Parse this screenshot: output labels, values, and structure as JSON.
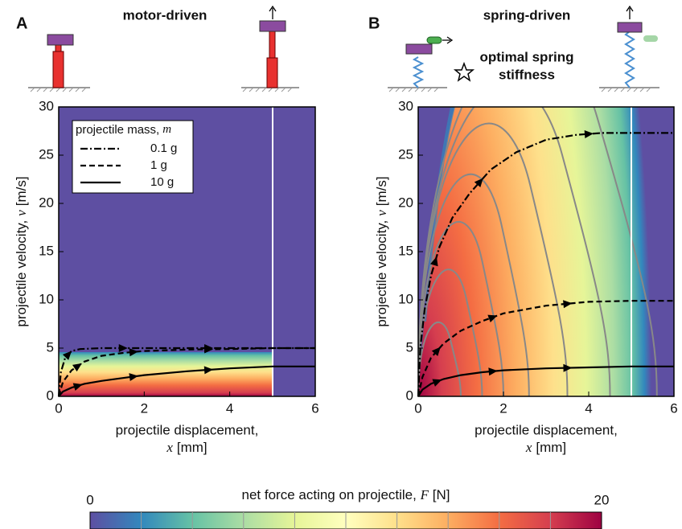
{
  "chart_data": [
    {
      "type": "line",
      "panel": "A",
      "title": "motor-driven",
      "x_label": {
        "text": "projectile displacement,",
        "symbol": "x",
        "unit": "[mm]"
      },
      "y_label": {
        "text": "projectile velocity,",
        "symbol": "v",
        "unit": "[m/s]"
      },
      "xlim": [
        0,
        6
      ],
      "xticks": [
        0,
        2,
        4,
        6
      ],
      "ylim": [
        0,
        30
      ],
      "yticks": [
        0,
        5,
        10,
        15,
        20,
        25,
        30
      ],
      "legend": "upper left",
      "legend_title": {
        "text": "projectile mass,",
        "symbol": "m"
      },
      "series": [
        {
          "name": "0.1 g",
          "color": "#000000",
          "dash": "dashdot",
          "x": [
            0,
            0.05,
            0.15,
            0.3,
            0.5,
            1,
            2,
            3,
            4,
            5,
            6
          ],
          "values": [
            0,
            2.5,
            4,
            4.7,
            4.9,
            5,
            5,
            5,
            5,
            5,
            5
          ]
        },
        {
          "name": "1 g",
          "color": "#000000",
          "dash": "dashed",
          "x": [
            0,
            0.1,
            0.3,
            0.6,
            1,
            1.5,
            2,
            3,
            4,
            5,
            6
          ],
          "values": [
            0,
            1.5,
            2.7,
            3.6,
            4.2,
            4.5,
            4.7,
            4.85,
            4.9,
            5,
            5
          ]
        },
        {
          "name": "10 g",
          "color": "#000000",
          "dash": "solid",
          "x": [
            0,
            0.1,
            0.3,
            0.6,
            1,
            1.5,
            2,
            3,
            4,
            5,
            6
          ],
          "values": [
            0,
            0.5,
            0.9,
            1.3,
            1.6,
            1.9,
            2.2,
            2.6,
            2.9,
            3.1,
            3.1
          ]
        }
      ]
    },
    {
      "type": "line",
      "panel": "B",
      "title": "spring-driven",
      "annotation": [
        "optimal spring",
        "stiffness"
      ],
      "x_label": {
        "text": "projectile displacement,",
        "symbol": "x",
        "unit": "[mm]"
      },
      "y_label": {
        "text": "projectile velocity,",
        "symbol": "v",
        "unit": "[m/s]"
      },
      "xlim": [
        0,
        6
      ],
      "xticks": [
        0,
        2,
        4,
        6
      ],
      "ylim": [
        0,
        30
      ],
      "yticks": [
        0,
        5,
        10,
        15,
        20,
        25,
        30
      ],
      "series": [
        {
          "color": "#000000",
          "dash": "dashdot",
          "x": [
            0,
            0.05,
            0.15,
            0.3,
            0.5,
            0.8,
            1.2,
            1.7,
            2.3,
            3,
            3.7,
            4.3,
            5,
            6
          ],
          "values": [
            0,
            5,
            9,
            12.5,
            15.5,
            18.5,
            21,
            23.5,
            25.3,
            26.6,
            27.1,
            27.3,
            27.3,
            27.3
          ]
        },
        {
          "color": "#000000",
          "dash": "dashed",
          "x": [
            0,
            0.1,
            0.3,
            0.6,
            1,
            1.5,
            2,
            3,
            4,
            5,
            6
          ],
          "values": [
            0,
            2,
            4,
            5.5,
            6.8,
            7.8,
            8.6,
            9.4,
            9.8,
            9.9,
            9.9
          ]
        },
        {
          "color": "#000000",
          "dash": "solid",
          "x": [
            0,
            0.1,
            0.3,
            0.6,
            1,
            1.5,
            2,
            3,
            4,
            5,
            6
          ],
          "values": [
            0,
            0.7,
            1.3,
            1.8,
            2.2,
            2.5,
            2.7,
            2.9,
            3,
            3.1,
            3.1
          ]
        }
      ]
    }
  ],
  "colorbar": {
    "label": {
      "text": "net force acting on projectile,",
      "symbol": "F",
      "unit": "[N]"
    },
    "lim": [
      0,
      20
    ],
    "ticks": [
      0,
      20
    ]
  }
}
